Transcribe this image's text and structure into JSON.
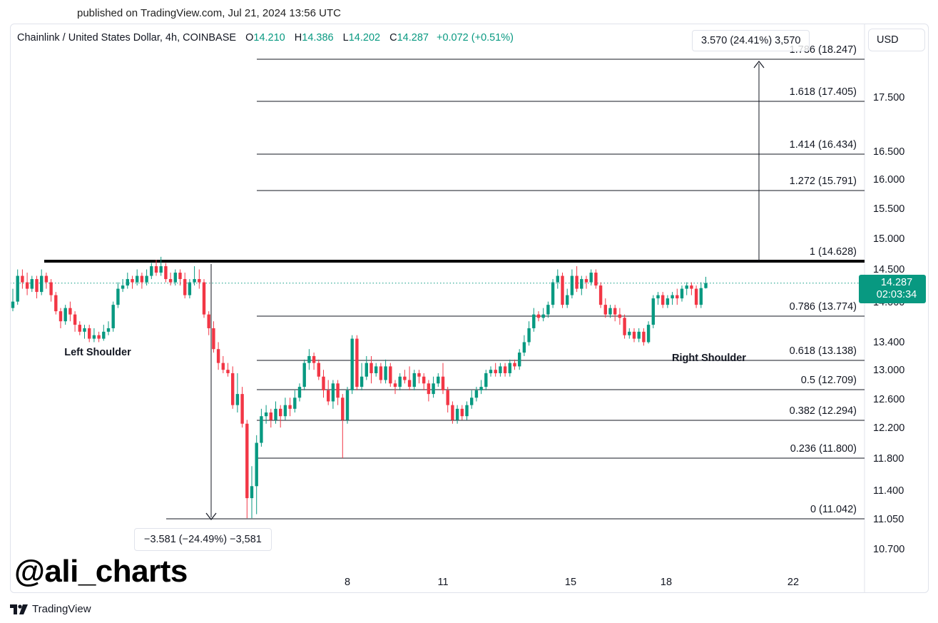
{
  "published": "published on TradingView.com, Jul 21, 2024 13:56 UTC",
  "header": {
    "symbol": "Chainlink / United States Dollar, 4h, COINBASE",
    "o_label": "O",
    "o_value": "14.210",
    "h_label": "H",
    "h_value": "14.386",
    "l_label": "L",
    "l_value": "14.202",
    "c_label": "C",
    "c_value": "14.287",
    "change": "+0.072 (+0.51%)"
  },
  "currency": "USD",
  "measure_up_label": "3.570 (24.41%) 3,570",
  "measure_down_label": "−3.581 (−24.49%) −3,581",
  "price_badge": {
    "price": "14.287",
    "countdown": "02:03:34"
  },
  "watermark": "@ali_charts",
  "logo_text": "TradingView",
  "colors": {
    "up": "#089981",
    "down": "#f23645",
    "text": "#131722",
    "badge": "#089981"
  },
  "chart_data": {
    "type": "candlestick",
    "symbol": "LINK/USD",
    "timeframe": "4h",
    "y_tick_labels": [
      "17.500",
      "16.500",
      "16.000",
      "15.500",
      "15.000",
      "14.500",
      "14.000",
      "13.400",
      "13.000",
      "12.600",
      "12.200",
      "11.800",
      "11.400",
      "11.050",
      "10.700"
    ],
    "x_tick_labels": [
      "8",
      "11",
      "15",
      "18",
      "22"
    ],
    "fib_levels": [
      {
        "label": "1.786 (18.247)",
        "price": 18.247
      },
      {
        "label": "1.618 (17.405)",
        "price": 17.405
      },
      {
        "label": "1.414 (16.434)",
        "price": 16.434
      },
      {
        "label": "1.272 (15.791)",
        "price": 15.791
      },
      {
        "label": "1 (14.628)",
        "price": 14.628
      },
      {
        "label": "0.786 (13.774)",
        "price": 13.774
      },
      {
        "label": "0.618 (13.138)",
        "price": 13.138
      },
      {
        "label": "0.5 (12.709)",
        "price": 12.709
      },
      {
        "label": "0.382 (12.294)",
        "price": 12.294
      },
      {
        "label": "0.236 (11.800)",
        "price": 11.8
      },
      {
        "label": "0 (11.042)",
        "price": 11.042
      }
    ],
    "neckline_price": 14.628,
    "last_price": 14.287,
    "annotations": [
      "Left Shoulder",
      "Right Shoulder"
    ],
    "candles": [
      [
        13.9,
        14.0,
        14.2,
        13.85
      ],
      [
        14.0,
        14.4,
        14.5,
        13.95
      ],
      [
        14.4,
        14.3,
        14.5,
        14.2
      ],
      [
        14.3,
        14.2,
        14.45,
        14.1
      ],
      [
        14.2,
        14.35,
        14.4,
        14.15
      ],
      [
        14.35,
        14.15,
        14.4,
        14.05
      ],
      [
        14.15,
        14.4,
        14.5,
        14.1
      ],
      [
        14.4,
        14.3,
        14.45,
        14.2
      ],
      [
        14.3,
        14.1,
        14.35,
        14.0
      ],
      [
        14.1,
        13.85,
        14.15,
        13.8
      ],
      [
        13.85,
        13.7,
        13.9,
        13.6
      ],
      [
        13.7,
        13.9,
        13.95,
        13.65
      ],
      [
        13.9,
        13.8,
        14.0,
        13.7
      ],
      [
        13.8,
        13.65,
        13.85,
        13.55
      ],
      [
        13.65,
        13.55,
        13.7,
        13.5
      ],
      [
        13.55,
        13.6,
        13.65,
        13.45
      ],
      [
        13.6,
        13.45,
        13.65,
        13.4
      ],
      [
        13.45,
        13.5,
        13.6,
        13.4
      ],
      [
        13.5,
        13.45,
        13.55,
        13.4
      ],
      [
        13.45,
        13.55,
        13.65,
        13.42
      ],
      [
        13.55,
        13.6,
        13.7,
        13.5
      ],
      [
        13.6,
        13.95,
        14.0,
        13.55
      ],
      [
        13.95,
        14.2,
        14.3,
        13.9
      ],
      [
        14.2,
        14.25,
        14.35,
        14.15
      ],
      [
        14.25,
        14.35,
        14.45,
        14.2
      ],
      [
        14.35,
        14.3,
        14.4,
        14.2
      ],
      [
        14.3,
        14.4,
        14.5,
        14.25
      ],
      [
        14.4,
        14.3,
        14.45,
        14.2
      ],
      [
        14.3,
        14.4,
        14.5,
        14.25
      ],
      [
        14.4,
        14.55,
        14.6,
        14.35
      ],
      [
        14.55,
        14.45,
        14.65,
        14.4
      ],
      [
        14.45,
        14.55,
        14.7,
        14.4
      ],
      [
        14.55,
        14.35,
        14.6,
        14.3
      ],
      [
        14.35,
        14.3,
        14.45,
        14.25
      ],
      [
        14.3,
        14.45,
        14.5,
        14.25
      ],
      [
        14.45,
        14.35,
        14.5,
        14.25
      ],
      [
        14.35,
        14.1,
        14.45,
        14.05
      ],
      [
        14.1,
        14.3,
        14.35,
        14.05
      ],
      [
        14.3,
        14.35,
        14.55,
        14.25
      ],
      [
        14.35,
        14.3,
        14.5,
        14.2
      ],
      [
        14.3,
        13.8,
        14.35,
        13.75
      ],
      [
        13.8,
        13.6,
        13.85,
        13.5
      ],
      [
        13.6,
        13.3,
        13.7,
        13.25
      ],
      [
        13.3,
        13.1,
        13.4,
        13.0
      ],
      [
        13.1,
        13.0,
        13.2,
        12.95
      ],
      [
        13.0,
        12.95,
        13.1,
        12.9
      ],
      [
        12.95,
        12.5,
        13.05,
        12.45
      ],
      [
        12.5,
        12.65,
        12.95,
        12.4
      ],
      [
        12.65,
        12.25,
        12.75,
        12.2
      ],
      [
        12.25,
        11.3,
        12.3,
        11.05
      ],
      [
        11.3,
        11.45,
        11.7,
        11.05
      ],
      [
        11.45,
        12.0,
        12.1,
        11.1
      ],
      [
        12.0,
        12.35,
        12.45,
        11.95
      ],
      [
        12.35,
        12.4,
        12.5,
        12.25
      ],
      [
        12.4,
        12.3,
        12.45,
        12.2
      ],
      [
        12.3,
        12.45,
        12.55,
        12.25
      ],
      [
        12.45,
        12.35,
        12.5,
        12.2
      ],
      [
        12.35,
        12.5,
        12.6,
        12.3
      ],
      [
        12.5,
        12.45,
        12.6,
        12.35
      ],
      [
        12.45,
        12.6,
        12.7,
        12.4
      ],
      [
        12.6,
        12.75,
        12.8,
        12.55
      ],
      [
        12.75,
        13.1,
        13.15,
        12.7
      ],
      [
        13.1,
        13.2,
        13.3,
        13.0
      ],
      [
        13.2,
        13.1,
        13.25,
        13.0
      ],
      [
        13.1,
        12.9,
        13.15,
        12.85
      ],
      [
        12.9,
        12.7,
        13.0,
        12.6
      ],
      [
        12.7,
        12.55,
        12.85,
        12.5
      ],
      [
        12.55,
        12.8,
        12.85,
        12.45
      ],
      [
        12.8,
        12.6,
        12.85,
        12.5
      ],
      [
        12.6,
        12.3,
        12.65,
        11.8
      ],
      [
        12.3,
        12.7,
        12.75,
        12.25
      ],
      [
        12.7,
        13.45,
        13.5,
        12.65
      ],
      [
        13.45,
        12.75,
        13.5,
        12.7
      ],
      [
        12.75,
        12.9,
        13.1,
        12.7
      ],
      [
        12.9,
        13.1,
        13.2,
        12.85
      ],
      [
        13.1,
        12.95,
        13.2,
        12.8
      ],
      [
        12.95,
        13.05,
        13.1,
        12.9
      ],
      [
        13.05,
        12.85,
        13.1,
        12.8
      ],
      [
        12.85,
        13.05,
        13.15,
        12.8
      ],
      [
        13.05,
        12.8,
        13.1,
        12.75
      ],
      [
        12.8,
        12.75,
        12.85,
        12.65
      ],
      [
        12.75,
        12.9,
        12.95,
        12.7
      ],
      [
        12.9,
        12.85,
        13.0,
        12.8
      ],
      [
        12.85,
        12.75,
        13.05,
        12.7
      ],
      [
        12.75,
        12.95,
        13.0,
        12.7
      ],
      [
        12.95,
        12.9,
        13.0,
        12.8
      ],
      [
        12.9,
        12.8,
        12.95,
        12.7
      ],
      [
        12.8,
        12.65,
        12.85,
        12.55
      ],
      [
        12.65,
        12.8,
        12.9,
        12.6
      ],
      [
        12.8,
        12.9,
        12.95,
        12.75
      ],
      [
        12.9,
        12.7,
        13.1,
        12.65
      ],
      [
        12.7,
        12.5,
        12.75,
        12.4
      ],
      [
        12.5,
        12.3,
        12.55,
        12.25
      ],
      [
        12.3,
        12.45,
        12.5,
        12.25
      ],
      [
        12.45,
        12.35,
        12.5,
        12.3
      ],
      [
        12.35,
        12.5,
        12.55,
        12.3
      ],
      [
        12.5,
        12.6,
        12.7,
        12.45
      ],
      [
        12.6,
        12.7,
        12.75,
        12.55
      ],
      [
        12.7,
        12.75,
        12.85,
        12.65
      ],
      [
        12.75,
        12.95,
        13.0,
        12.7
      ],
      [
        12.95,
        13.0,
        13.05,
        12.9
      ],
      [
        13.0,
        12.95,
        13.1,
        12.9
      ],
      [
        12.95,
        13.05,
        13.1,
        12.9
      ],
      [
        13.05,
        12.95,
        13.1,
        12.9
      ],
      [
        12.95,
        13.1,
        13.15,
        12.9
      ],
      [
        13.1,
        13.05,
        13.15,
        13.0
      ],
      [
        13.05,
        13.25,
        13.3,
        13.0
      ],
      [
        13.25,
        13.4,
        13.5,
        13.2
      ],
      [
        13.4,
        13.6,
        13.7,
        13.35
      ],
      [
        13.6,
        13.8,
        13.9,
        13.55
      ],
      [
        13.8,
        13.75,
        13.85,
        13.7
      ],
      [
        13.75,
        13.8,
        13.9,
        13.7
      ],
      [
        13.8,
        13.95,
        14.0,
        13.75
      ],
      [
        13.95,
        14.3,
        14.35,
        13.9
      ],
      [
        14.3,
        14.4,
        14.5,
        14.2
      ],
      [
        14.4,
        13.95,
        14.45,
        13.9
      ],
      [
        13.95,
        14.1,
        14.2,
        13.9
      ],
      [
        14.1,
        14.4,
        14.5,
        14.05
      ],
      [
        14.4,
        14.2,
        14.55,
        14.15
      ],
      [
        14.2,
        14.35,
        14.4,
        14.1
      ],
      [
        14.35,
        14.3,
        14.4,
        14.2
      ],
      [
        14.3,
        14.45,
        14.5,
        14.25
      ],
      [
        14.45,
        14.25,
        14.5,
        14.2
      ],
      [
        14.25,
        13.95,
        14.3,
        13.9
      ],
      [
        13.95,
        13.8,
        14.05,
        13.75
      ],
      [
        13.8,
        13.9,
        13.95,
        13.75
      ],
      [
        13.9,
        13.8,
        13.95,
        13.7
      ],
      [
        13.8,
        13.75,
        13.9,
        13.65
      ],
      [
        13.75,
        13.5,
        13.8,
        13.45
      ],
      [
        13.5,
        13.55,
        13.6,
        13.45
      ],
      [
        13.55,
        13.45,
        13.6,
        13.4
      ],
      [
        13.45,
        13.55,
        13.6,
        13.4
      ],
      [
        13.55,
        13.4,
        13.6,
        13.35
      ],
      [
        13.4,
        13.65,
        13.7,
        13.38
      ],
      [
        13.65,
        14.05,
        14.1,
        13.6
      ],
      [
        14.05,
        14.1,
        14.15,
        13.95
      ],
      [
        14.1,
        13.95,
        14.15,
        13.9
      ],
      [
        13.95,
        14.05,
        14.1,
        13.9
      ],
      [
        14.05,
        14.1,
        14.15,
        13.95
      ],
      [
        14.1,
        14.05,
        14.2,
        13.95
      ],
      [
        14.05,
        14.2,
        14.25,
        14.0
      ],
      [
        14.2,
        14.25,
        14.3,
        14.1
      ],
      [
        14.25,
        14.2,
        14.3,
        14.1
      ],
      [
        14.2,
        13.95,
        14.25,
        13.9
      ],
      [
        13.95,
        14.21,
        14.3,
        13.9
      ],
      [
        14.21,
        14.287,
        14.386,
        14.202
      ]
    ]
  }
}
